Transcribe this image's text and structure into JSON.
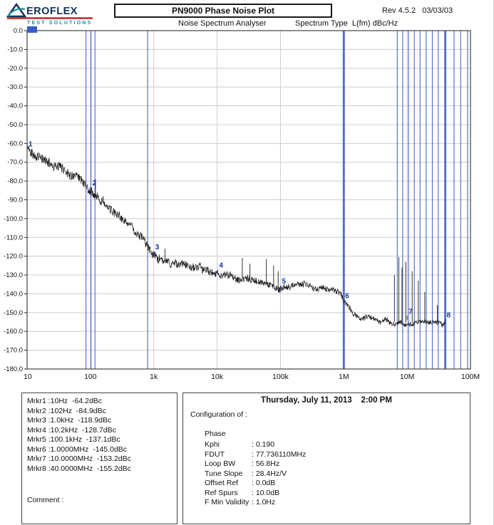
{
  "header": {
    "logo": {
      "icon": "triangle-a-icon",
      "text": "EROFLEX",
      "subtext": "TEST SOLUTIONS"
    },
    "title": "PN9000 Phase Noise Plot",
    "rev": "Rev 4.5.2   03/03/03",
    "analyser_label": "Noise Spectrum Analyser",
    "spectrum_type_label": "Spectrum Type  L(fm) dBc/Hz"
  },
  "chart_data": {
    "type": "line",
    "x_scale": "log",
    "x_range_hz": [
      10,
      100000000
    ],
    "x_ticks": [
      "10",
      "100",
      "1k",
      "10k",
      "100k",
      "1M",
      "10M",
      "100M"
    ],
    "ylim": [
      -180,
      0
    ],
    "y_tick_step": 10,
    "y_tick_labels": [
      "0.0",
      "-10.0",
      "-20.0",
      "-30.0",
      "-40.0",
      "-50.0",
      "-60.0",
      "-70.0",
      "-80.0",
      "-90.0",
      "-100.0",
      "-110.0",
      "-120.0",
      "-130.0",
      "-140.0",
      "-150.0",
      "-160.0",
      "-170.0",
      "-180.0"
    ],
    "ylabel": "L(fm) dBc/Hz",
    "grid": true,
    "trace_end_hz": 40000000,
    "trace_profile": [
      [
        10,
        -62.5
      ],
      [
        15,
        -67
      ],
      [
        25,
        -71
      ],
      [
        40,
        -74.5
      ],
      [
        63,
        -78
      ],
      [
        80,
        -81
      ],
      [
        100,
        -85
      ],
      [
        130,
        -89
      ],
      [
        200,
        -95
      ],
      [
        320,
        -101
      ],
      [
        500,
        -107.5
      ],
      [
        700,
        -112
      ],
      [
        1000,
        -118.5
      ],
      [
        1300,
        -121.5
      ],
      [
        2000,
        -123.5
      ],
      [
        3200,
        -125.5
      ],
      [
        5000,
        -127
      ],
      [
        10000,
        -129
      ],
      [
        16000,
        -130.5
      ],
      [
        32000,
        -132.5
      ],
      [
        63000,
        -134.5
      ],
      [
        100000,
        -136.8
      ],
      [
        130000,
        -135.8
      ],
      [
        200000,
        -135.5
      ],
      [
        320000,
        -136
      ],
      [
        500000,
        -136.5
      ],
      [
        700000,
        -137.2
      ],
      [
        900000,
        -139
      ],
      [
        1000000,
        -143.5
      ],
      [
        1100000,
        -146.5
      ],
      [
        1300000,
        -149.5
      ],
      [
        1600000,
        -151.5
      ],
      [
        2000000,
        -152.5
      ],
      [
        3200000,
        -154
      ],
      [
        5000000,
        -154.8
      ],
      [
        10000000,
        -155.2
      ],
      [
        20000000,
        -155
      ],
      [
        40000000,
        -155.3
      ]
    ],
    "spurs": [
      [
        120,
        -79
      ],
      [
        160,
        -88
      ],
      [
        1500,
        -116
      ],
      [
        25000,
        -121
      ],
      [
        33000,
        -124
      ],
      [
        60000,
        -121.5
      ],
      [
        78000,
        -125
      ],
      [
        92000,
        -128
      ],
      [
        6300000,
        -130
      ],
      [
        7400000,
        -120.5
      ],
      [
        8300000,
        -126
      ],
      [
        9500000,
        -123
      ],
      [
        12000000,
        -128
      ],
      [
        15000000,
        -133
      ],
      [
        19000000,
        -139
      ],
      [
        30000000,
        -146
      ]
    ],
    "marker_lines": [
      [
        85,
        1
      ],
      [
        102,
        1
      ],
      [
        118,
        1
      ],
      [
        800,
        1
      ],
      [
        1000000,
        3
      ],
      [
        7000000,
        1
      ],
      [
        8500000,
        1
      ],
      [
        10500000,
        1
      ],
      [
        13000000,
        1
      ],
      [
        16000000,
        1
      ],
      [
        20000000,
        1
      ],
      [
        25000000,
        1
      ],
      [
        31000000,
        1
      ],
      [
        40000000,
        3
      ],
      [
        55000000,
        1
      ],
      [
        70000000,
        1
      ],
      [
        90000000,
        1
      ]
    ],
    "markers": [
      {
        "n": "1",
        "f_hz": 10,
        "dbc": -64.2
      },
      {
        "n": "2",
        "f_hz": 102,
        "dbc": -84.9
      },
      {
        "n": "3",
        "f_hz": 1000,
        "dbc": -118.9
      },
      {
        "n": "4",
        "f_hz": 10200,
        "dbc": -128.7
      },
      {
        "n": "5",
        "f_hz": 100100,
        "dbc": -137.1
      },
      {
        "n": "6",
        "f_hz": 1000000,
        "dbc": -145.0
      },
      {
        "n": "7",
        "f_hz": 10000000,
        "dbc": -153.2
      },
      {
        "n": "8",
        "f_hz": 40000000,
        "dbc": -155.2
      }
    ],
    "colors": {
      "trace": "#1a1a1a",
      "marker_line": "#3b5bc4",
      "grid": "#cccccc",
      "marker_text": "#16348c",
      "axis_text": "#111111"
    }
  },
  "marker_panel": {
    "lines": [
      "Mrkr1 :10Hz  -64.2dBc",
      "Mrkr2 :102Hz  -84.9dBc",
      "Mrkr3 :1.0kHz  -118.9dBc",
      "Mrkr4 :10.2kHz  -128.7dBc",
      "Mrkr5 :100.1kHz  -137.1dBc",
      "Mrkr6 :1.0000MHz  -145.0dBc",
      "Mrkr7 :10.0000MHz  -153.2dBc",
      "Mrkr8 :40.0000MHz  -155.2dBc"
    ],
    "comment_label": "Comment :"
  },
  "config_panel": {
    "datetime": "Thursday, July 11, 2013    2:00 PM",
    "config_label": "Configuration of :",
    "section": "Phase",
    "rows": [
      {
        "key": "Kphi",
        "value": ": 0.190"
      },
      {
        "key": "FDUT",
        "value": ": 77.736110MHz"
      },
      {
        "key": "Loop BW",
        "value": ": 56.8Hz"
      },
      {
        "key": "Tune Slope",
        "value": ": 28.4Hz/V"
      },
      {
        "key": "Offset Ref",
        "value": ": 0.0dB"
      },
      {
        "key": "Ref Spurs",
        "value": ": 10.0dB"
      },
      {
        "key": "F Min Validity",
        "value": ": 1.0Hz"
      }
    ]
  }
}
